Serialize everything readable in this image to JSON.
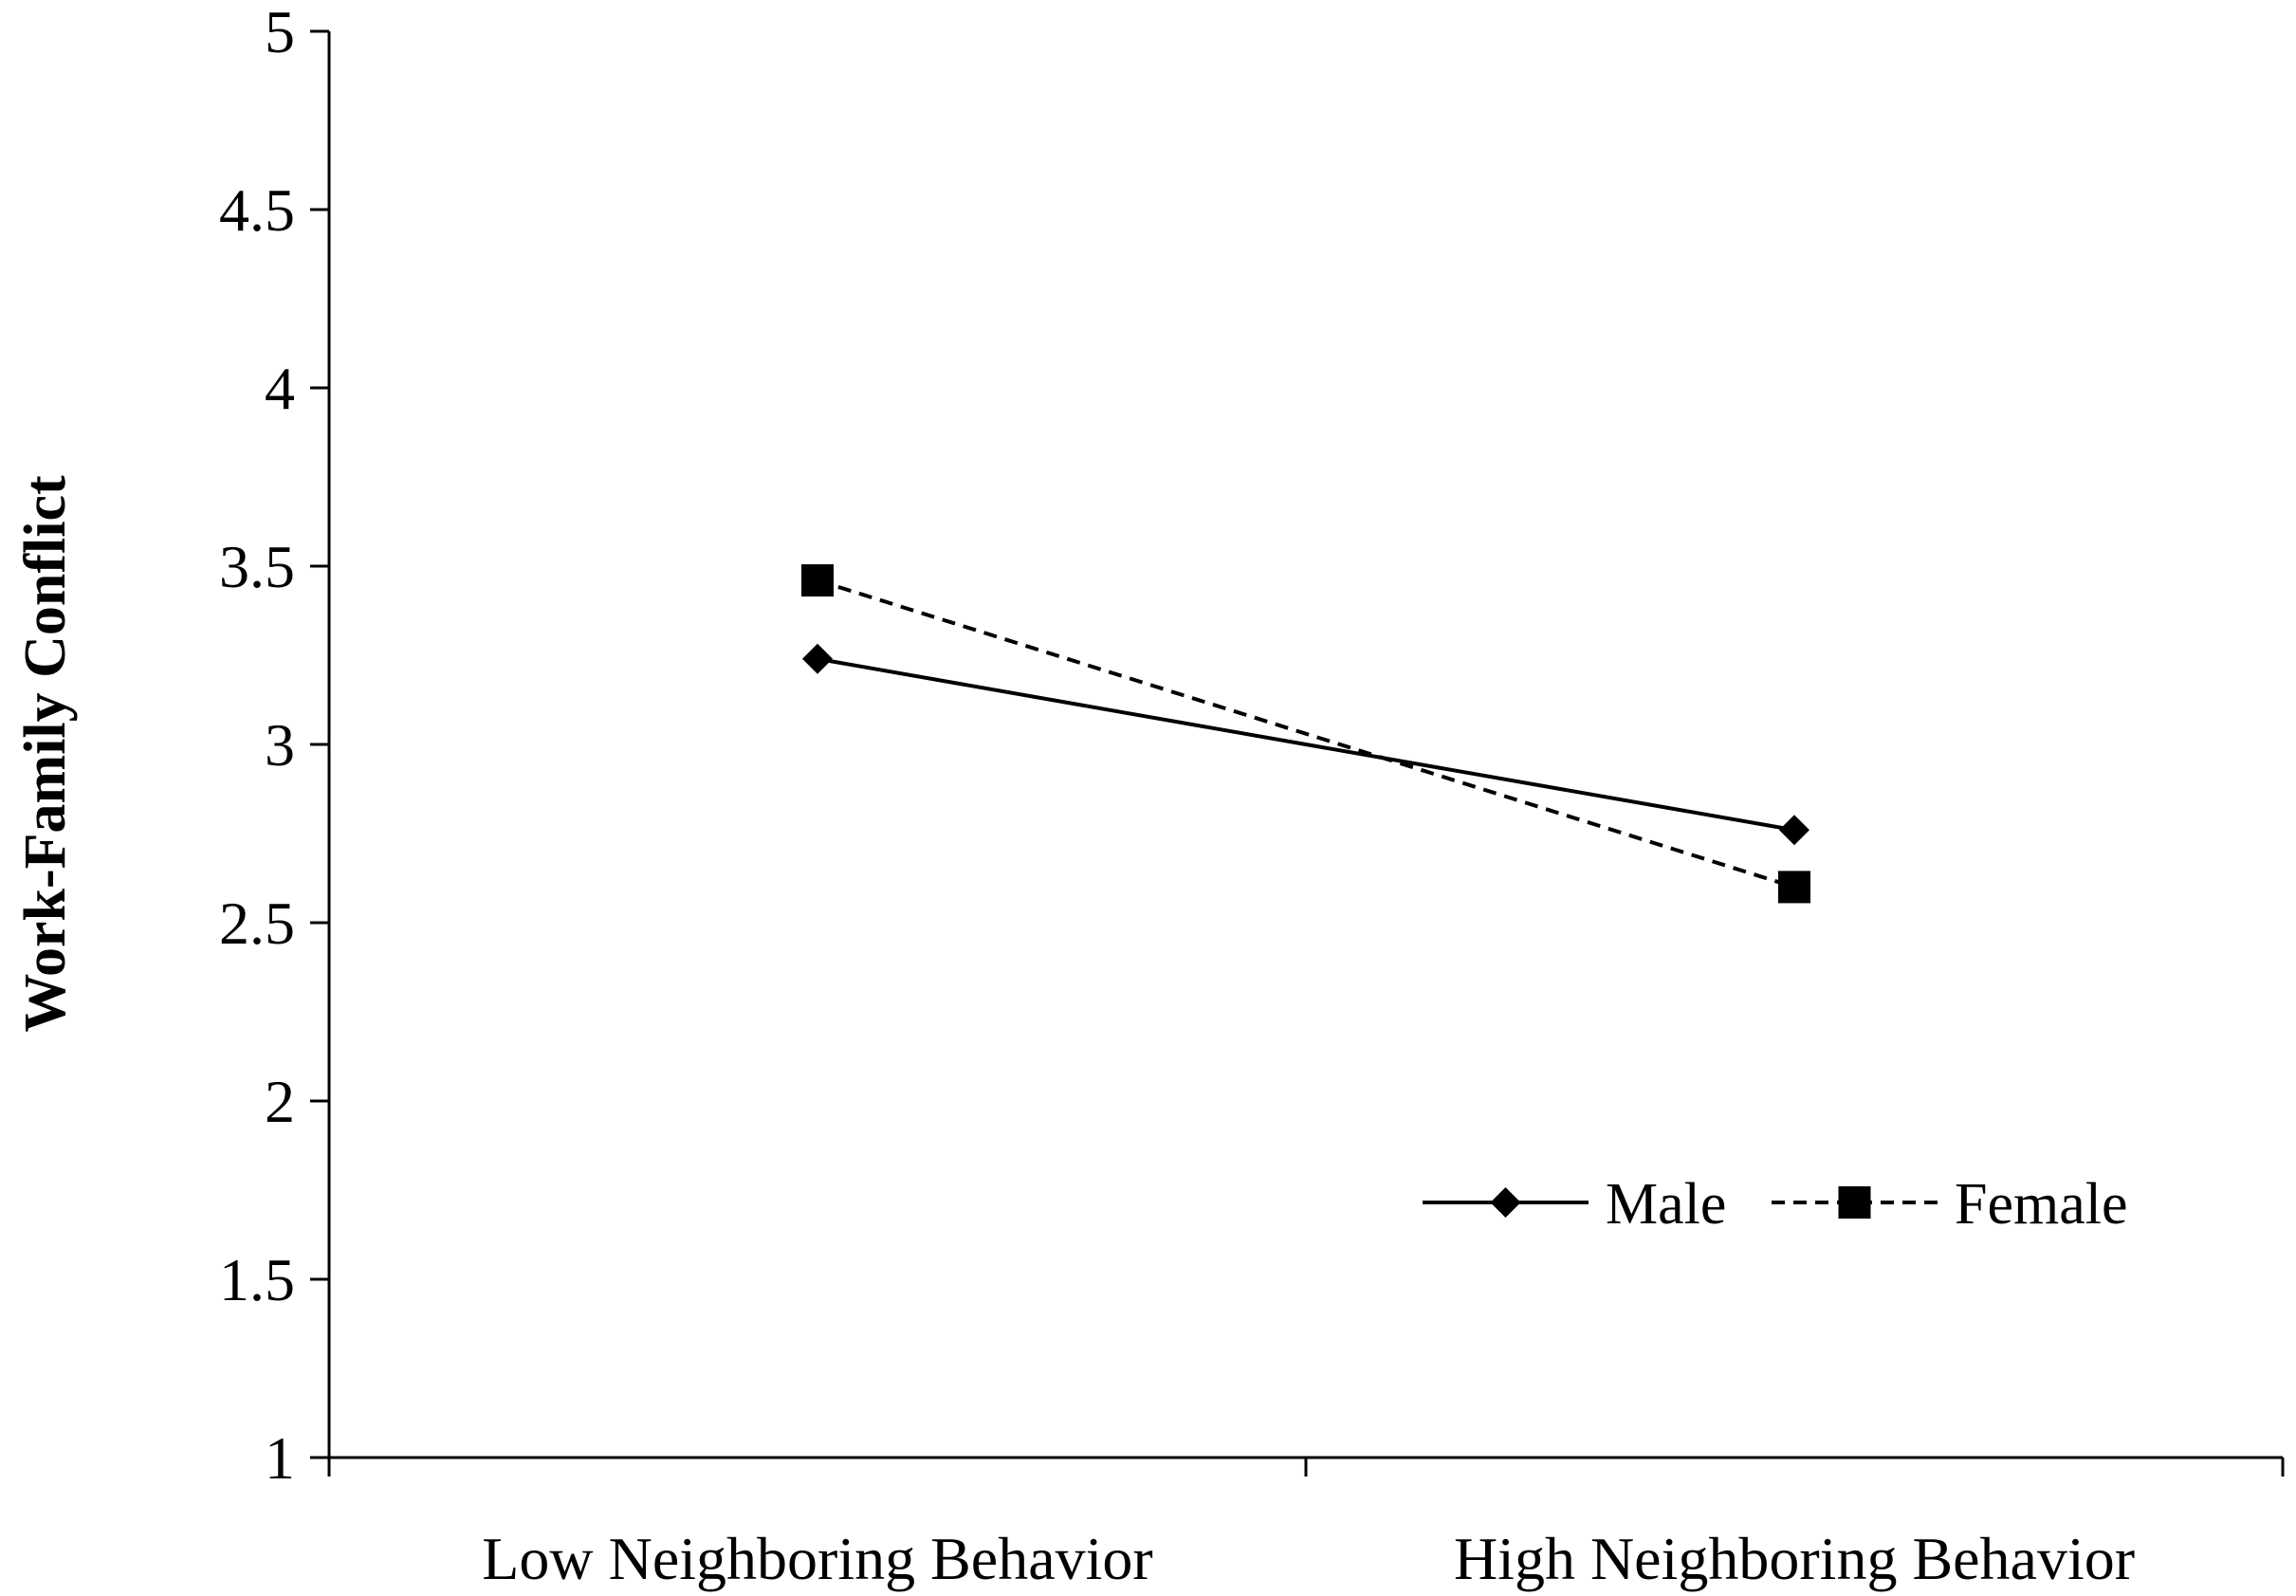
{
  "chart_data": {
    "type": "line",
    "title": "",
    "xlabel": "",
    "ylabel": "Work-Family Conflict",
    "categories": [
      "Low Neighboring Behavior",
      "High Neighboring Behavior"
    ],
    "ylim": [
      1,
      5
    ],
    "yticks": [
      "1",
      "1.5",
      "2",
      "2.5",
      "3",
      "3.5",
      "4",
      "4.5",
      "5"
    ],
    "grid": false,
    "legend_position": "lower-right",
    "series": [
      {
        "name": "Male",
        "values": [
          3.24,
          2.76
        ],
        "line_style": "solid",
        "marker": "diamond",
        "color": "#000000"
      },
      {
        "name": "Female",
        "values": [
          3.46,
          2.6
        ],
        "line_style": "dashed",
        "marker": "square",
        "color": "#000000"
      }
    ]
  }
}
